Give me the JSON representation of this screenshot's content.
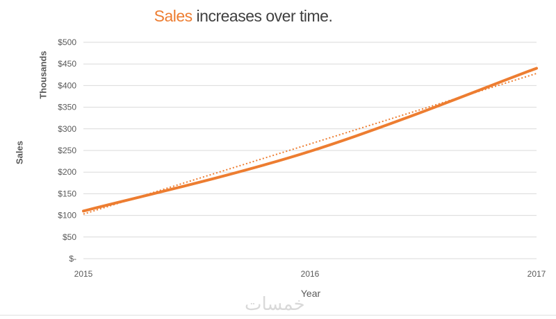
{
  "title": {
    "accent": "Sales",
    "rest": " increases over time."
  },
  "watermark": "خمسات",
  "colors": {
    "series": "#ed7d31",
    "grid": "#d9d9d9",
    "text": "#595959"
  },
  "chart_data": {
    "type": "line",
    "title": "Sales increases over time.",
    "xlabel": "Year",
    "ylabel": "Sales",
    "y_unit_label": "Thousands",
    "x": [
      "2015",
      "2016",
      "2017"
    ],
    "series": [
      {
        "name": "Sales",
        "values": [
          110,
          248,
          440
        ],
        "style": "solid"
      },
      {
        "name": "",
        "values": [
          103,
          265,
          428
        ],
        "style": "dotted",
        "role": "trendline"
      }
    ],
    "ylim": [
      0,
      500
    ],
    "yticks": [
      0,
      50,
      100,
      150,
      200,
      250,
      300,
      350,
      400,
      450,
      500
    ],
    "ytick_labels": [
      "$-",
      "$50",
      "$100",
      "$150",
      "$200",
      "$250",
      "$300",
      "$350",
      "$400",
      "$450",
      "$500"
    ],
    "grid": true,
    "legend": "none"
  }
}
